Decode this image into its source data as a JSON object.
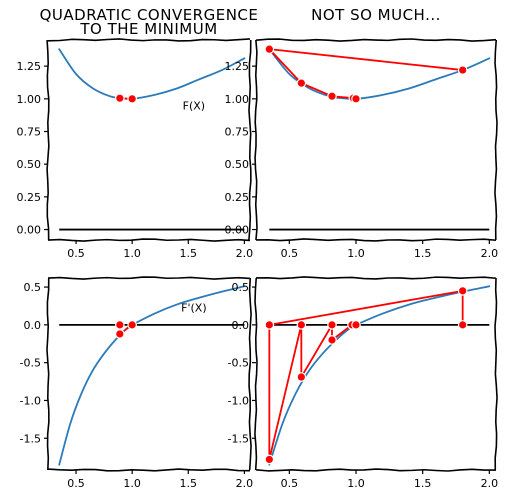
{
  "colors": {
    "curve": "#2b7bba",
    "iterates": "#ff0000",
    "axis": "#000000",
    "background": "#ffffff"
  },
  "chart_data": [
    {
      "panel": "top-left",
      "type": "line",
      "title": [
        "QUADRATIC CONVERGENCE",
        "TO THE MINIMUM"
      ],
      "annotation": "F(X)",
      "xlim": [
        0.25,
        2.05
      ],
      "ylim": [
        -0.08,
        1.45
      ],
      "xticks": [
        "0.5",
        "1.0",
        "1.5",
        "2.0"
      ],
      "yticks": [
        "0.00",
        "0.25",
        "0.50",
        "0.75",
        "1.00",
        "1.25"
      ],
      "series": [
        {
          "role": "curve",
          "x": [
            0.35,
            0.5,
            0.65,
            0.8,
            0.9,
            1.0,
            1.2,
            1.4,
            1.6,
            1.8,
            2.0
          ],
          "y": [
            1.38,
            1.19,
            1.08,
            1.02,
            1.005,
            1.0,
            1.03,
            1.08,
            1.15,
            1.22,
            1.31
          ]
        },
        {
          "role": "zero-line",
          "x": [
            0.35,
            2.0
          ],
          "y": [
            0.0,
            0.0
          ]
        },
        {
          "role": "iterates",
          "x": [
            0.89,
            1.0
          ],
          "y": [
            1.005,
            1.0
          ]
        }
      ]
    },
    {
      "panel": "top-right",
      "type": "line",
      "title": [
        "NOT SO MUCH..."
      ],
      "annotation": "",
      "xlim": [
        0.25,
        2.05
      ],
      "ylim": [
        -0.08,
        1.45
      ],
      "xticks": [
        "0.5",
        "1.0",
        "1.5",
        "2.0"
      ],
      "yticks": [
        "0.00",
        "0.25",
        "0.50",
        "0.75",
        "1.00",
        "1.25"
      ],
      "series": [
        {
          "role": "curve",
          "x": [
            0.35,
            0.5,
            0.65,
            0.8,
            0.9,
            1.0,
            1.2,
            1.4,
            1.6,
            1.8,
            2.0
          ],
          "y": [
            1.38,
            1.19,
            1.08,
            1.02,
            1.005,
            1.0,
            1.03,
            1.08,
            1.15,
            1.22,
            1.31
          ]
        },
        {
          "role": "zero-line",
          "x": [
            0.35,
            2.0
          ],
          "y": [
            0.0,
            0.0
          ]
        },
        {
          "role": "iterates",
          "x": [
            1.8,
            0.35,
            0.59,
            0.82,
            0.98,
            1.0
          ],
          "y": [
            1.22,
            1.38,
            1.12,
            1.02,
            1.005,
            1.0
          ]
        }
      ]
    },
    {
      "panel": "bottom-left",
      "type": "line",
      "title": [],
      "annotation": "F'(X)",
      "xlim": [
        0.25,
        2.05
      ],
      "ylim": [
        -1.92,
        0.62
      ],
      "xticks": [
        "0.5",
        "1.0",
        "1.5",
        "2.0"
      ],
      "yticks": [
        "-1.5",
        "-1.0",
        "-0.5",
        "0.0",
        "0.5"
      ],
      "series": [
        {
          "role": "curve",
          "x": [
            0.35,
            0.45,
            0.55,
            0.65,
            0.75,
            0.85,
            0.95,
            1.0,
            1.2,
            1.4,
            1.6,
            1.8,
            2.0
          ],
          "y": [
            -1.85,
            -1.3,
            -0.9,
            -0.6,
            -0.38,
            -0.2,
            -0.05,
            0.0,
            0.15,
            0.27,
            0.36,
            0.44,
            0.51
          ]
        },
        {
          "role": "zero-line",
          "x": [
            0.35,
            2.0
          ],
          "y": [
            0.0,
            0.0
          ]
        },
        {
          "role": "iterates",
          "x": [
            0.89,
            0.89,
            1.0
          ],
          "y": [
            0.0,
            -0.12,
            0.0
          ]
        }
      ]
    },
    {
      "panel": "bottom-right",
      "type": "line",
      "title": [],
      "annotation": "",
      "xlim": [
        0.25,
        2.05
      ],
      "ylim": [
        -1.92,
        0.62
      ],
      "xticks": [
        "0.5",
        "1.0",
        "1.5",
        "2.0"
      ],
      "yticks": [
        "-1.5",
        "-1.0",
        "-0.5",
        "0.0",
        "0.5"
      ],
      "series": [
        {
          "role": "curve",
          "x": [
            0.35,
            0.45,
            0.55,
            0.65,
            0.75,
            0.85,
            0.95,
            1.0,
            1.2,
            1.4,
            1.6,
            1.8,
            2.0
          ],
          "y": [
            -1.85,
            -1.3,
            -0.9,
            -0.6,
            -0.38,
            -0.2,
            -0.05,
            0.0,
            0.15,
            0.27,
            0.36,
            0.44,
            0.51
          ]
        },
        {
          "role": "zero-line",
          "x": [
            0.35,
            2.0
          ],
          "y": [
            0.0,
            0.0
          ]
        },
        {
          "role": "iterates",
          "x": [
            1.8,
            1.8,
            0.35,
            0.35,
            0.59,
            0.59,
            0.82,
            0.82,
            0.97,
            1.0
          ],
          "y": [
            0.0,
            0.45,
            0.0,
            -1.78,
            0.0,
            -0.69,
            0.0,
            -0.2,
            0.0,
            0.0
          ]
        }
      ]
    }
  ]
}
